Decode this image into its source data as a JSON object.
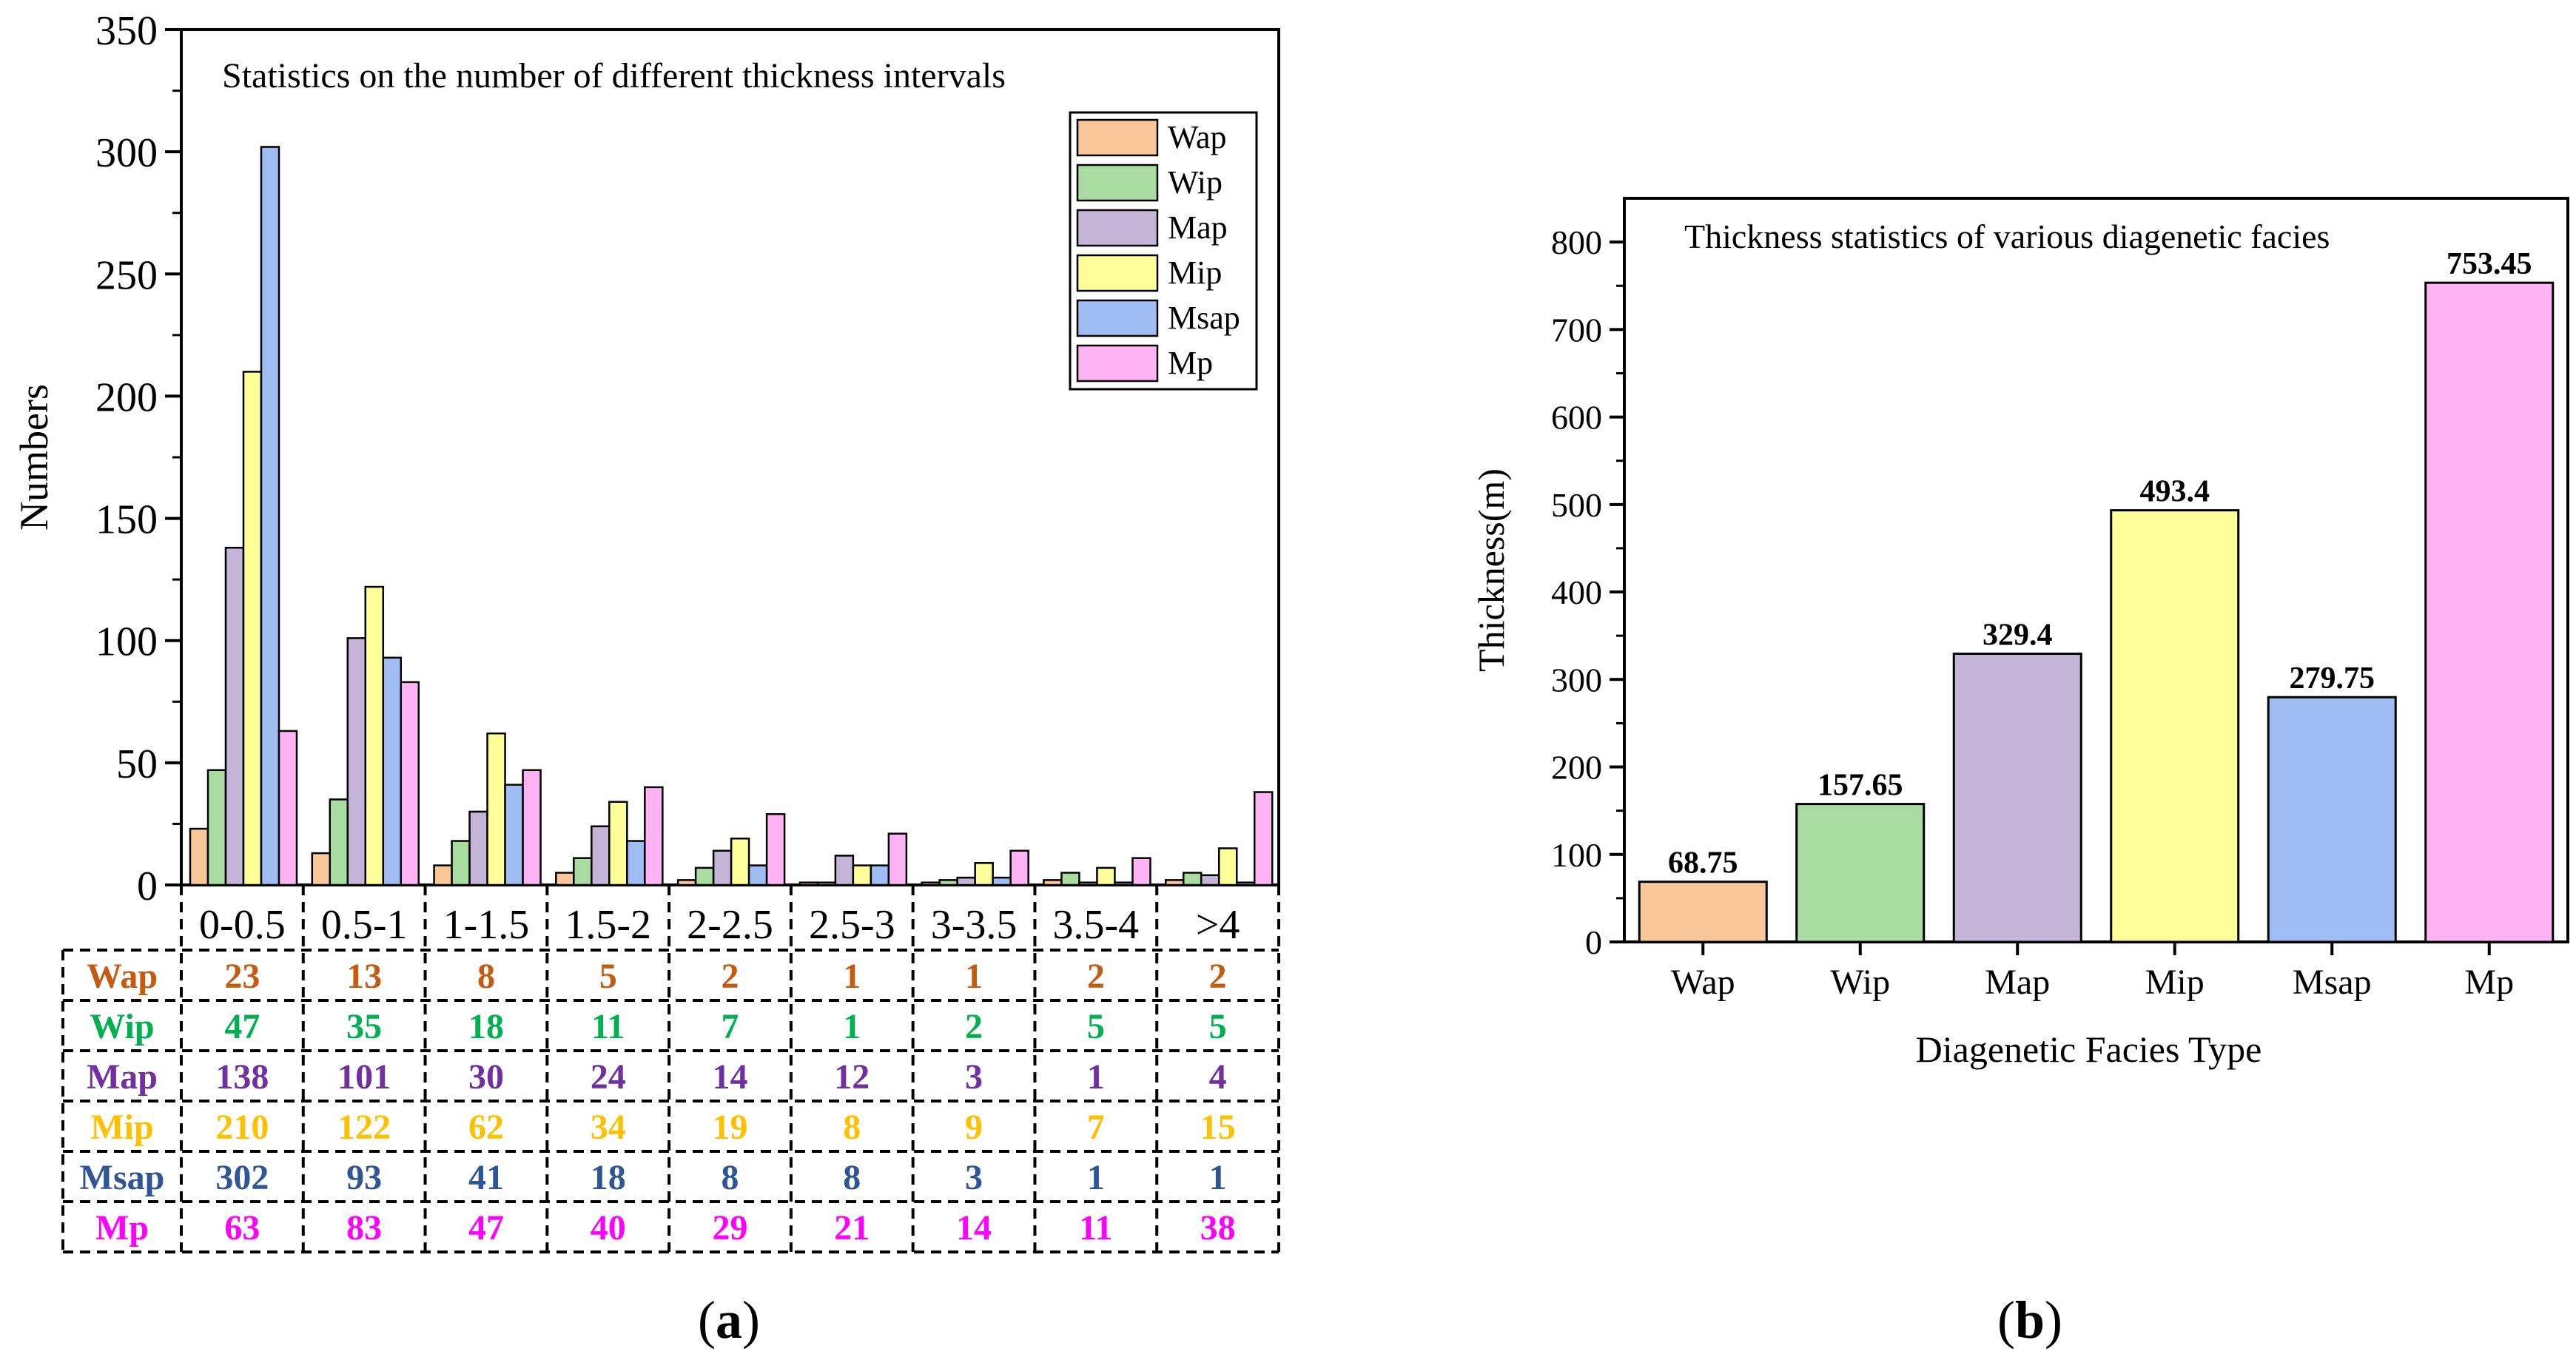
{
  "chart_data": [
    {
      "type": "bar",
      "title": "Statistics on the number of different thickness intervals",
      "ylabel": "Numbers",
      "xlabel": "",
      "ylim": [
        0,
        350
      ],
      "yticks": [
        "0",
        "50",
        "100",
        "150",
        "200",
        "250",
        "300",
        "350"
      ],
      "categories": [
        "0-0.5",
        "0.5-1",
        "1-1.5",
        "1.5-2",
        "2-2.5",
        "2.5-3",
        "3-3.5",
        "3.5-4",
        ">4"
      ],
      "series": [
        {
          "name": "Wap",
          "color": "#FAC898",
          "label_color": "#C55A11",
          "values": [
            23,
            13,
            8,
            5,
            2,
            1,
            1,
            2,
            2
          ]
        },
        {
          "name": "Wip",
          "color": "#A8DCA0",
          "label_color": "#00B050",
          "values": [
            47,
            35,
            18,
            11,
            7,
            1,
            2,
            5,
            5
          ]
        },
        {
          "name": "Map",
          "color": "#C3B4D8",
          "label_color": "#7030A0",
          "values": [
            138,
            101,
            30,
            24,
            14,
            12,
            3,
            1,
            4
          ]
        },
        {
          "name": "Mip",
          "color": "#FFFF99",
          "label_color": "#FFC000",
          "values": [
            210,
            122,
            62,
            34,
            19,
            8,
            9,
            7,
            15
          ]
        },
        {
          "name": "Msap",
          "color": "#9FBDF2",
          "label_color": "#2F5597",
          "values": [
            302,
            93,
            41,
            18,
            8,
            8,
            3,
            1,
            1
          ]
        },
        {
          "name": "Mp",
          "color": "#FFB3F5",
          "label_color": "#FF00FF",
          "values": [
            63,
            83,
            47,
            40,
            29,
            21,
            14,
            11,
            38
          ]
        }
      ],
      "legend": "top-right",
      "panel_label": "(a)",
      "panel_letter": "a"
    },
    {
      "type": "bar",
      "title": "Thickness statistics of various diagenetic facies",
      "xlabel": "Diagenetic Facies Type",
      "ylabel": "Thickness(m)",
      "ylim": [
        0,
        850
      ],
      "yticks": [
        "0",
        "100",
        "200",
        "300",
        "400",
        "500",
        "600",
        "700",
        "800"
      ],
      "categories": [
        "Wap",
        "Wip",
        "Map",
        "Mip",
        "Msap",
        "Mp"
      ],
      "values": [
        68.75,
        157.65,
        329.4,
        493.4,
        279.75,
        753.45
      ],
      "value_labels": [
        "68.75",
        "157.65",
        "329.4",
        "493.4",
        "279.75",
        "753.45"
      ],
      "colors": [
        "#FAC898",
        "#A8DCA0",
        "#C3B4D8",
        "#FFFF99",
        "#9FBDF2",
        "#FFB3F5"
      ],
      "panel_label": "(b)",
      "panel_letter": "b"
    }
  ]
}
